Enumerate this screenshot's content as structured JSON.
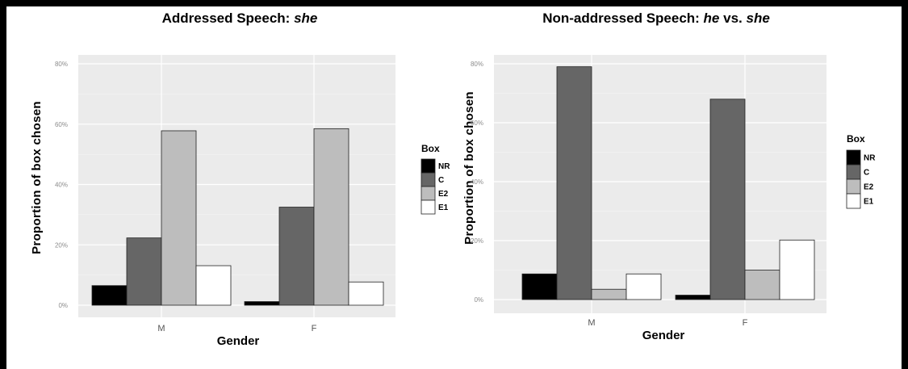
{
  "colors": {
    "NR": "#000000",
    "C": "#666666",
    "E2": "#bdbdbd",
    "E1": "#ffffff",
    "panel": "#ebebeb",
    "grid": "#f7f7f7"
  },
  "chart_data": [
    {
      "type": "bar",
      "title_prefix": "Addressed Speech: ",
      "title_em": "she",
      "title_mid": "",
      "title_em2": "",
      "xlabel": "Gender",
      "ylabel": "Proportion of box chosen",
      "categories": [
        "M",
        "F"
      ],
      "yticks": [
        "0%",
        "20%",
        "40%",
        "60%",
        "80%"
      ],
      "ylim": [
        0,
        0.8
      ],
      "legend_title": "Box",
      "series": [
        {
          "name": "NR",
          "values": [
            0.065,
            0.012
          ]
        },
        {
          "name": "C",
          "values": [
            0.223,
            0.325
          ]
        },
        {
          "name": "E2",
          "values": [
            0.578,
            0.585
          ]
        },
        {
          "name": "E1",
          "values": [
            0.131,
            0.077
          ]
        }
      ]
    },
    {
      "type": "bar",
      "title_prefix": "Non-addressed Speech: ",
      "title_em": "he",
      "title_mid": " vs. ",
      "title_em2": "she",
      "xlabel": "Gender",
      "ylabel": "Proportion of box chosen",
      "categories": [
        "M",
        "F"
      ],
      "yticks": [
        "0%",
        "20%",
        "40%",
        "60%",
        "80%"
      ],
      "ylim": [
        0,
        0.8
      ],
      "legend_title": "Box",
      "series": [
        {
          "name": "NR",
          "values": [
            0.087,
            0.015
          ]
        },
        {
          "name": "C",
          "values": [
            0.79,
            0.68
          ]
        },
        {
          "name": "E2",
          "values": [
            0.035,
            0.1
          ]
        },
        {
          "name": "E1",
          "values": [
            0.087,
            0.202
          ]
        }
      ]
    }
  ]
}
